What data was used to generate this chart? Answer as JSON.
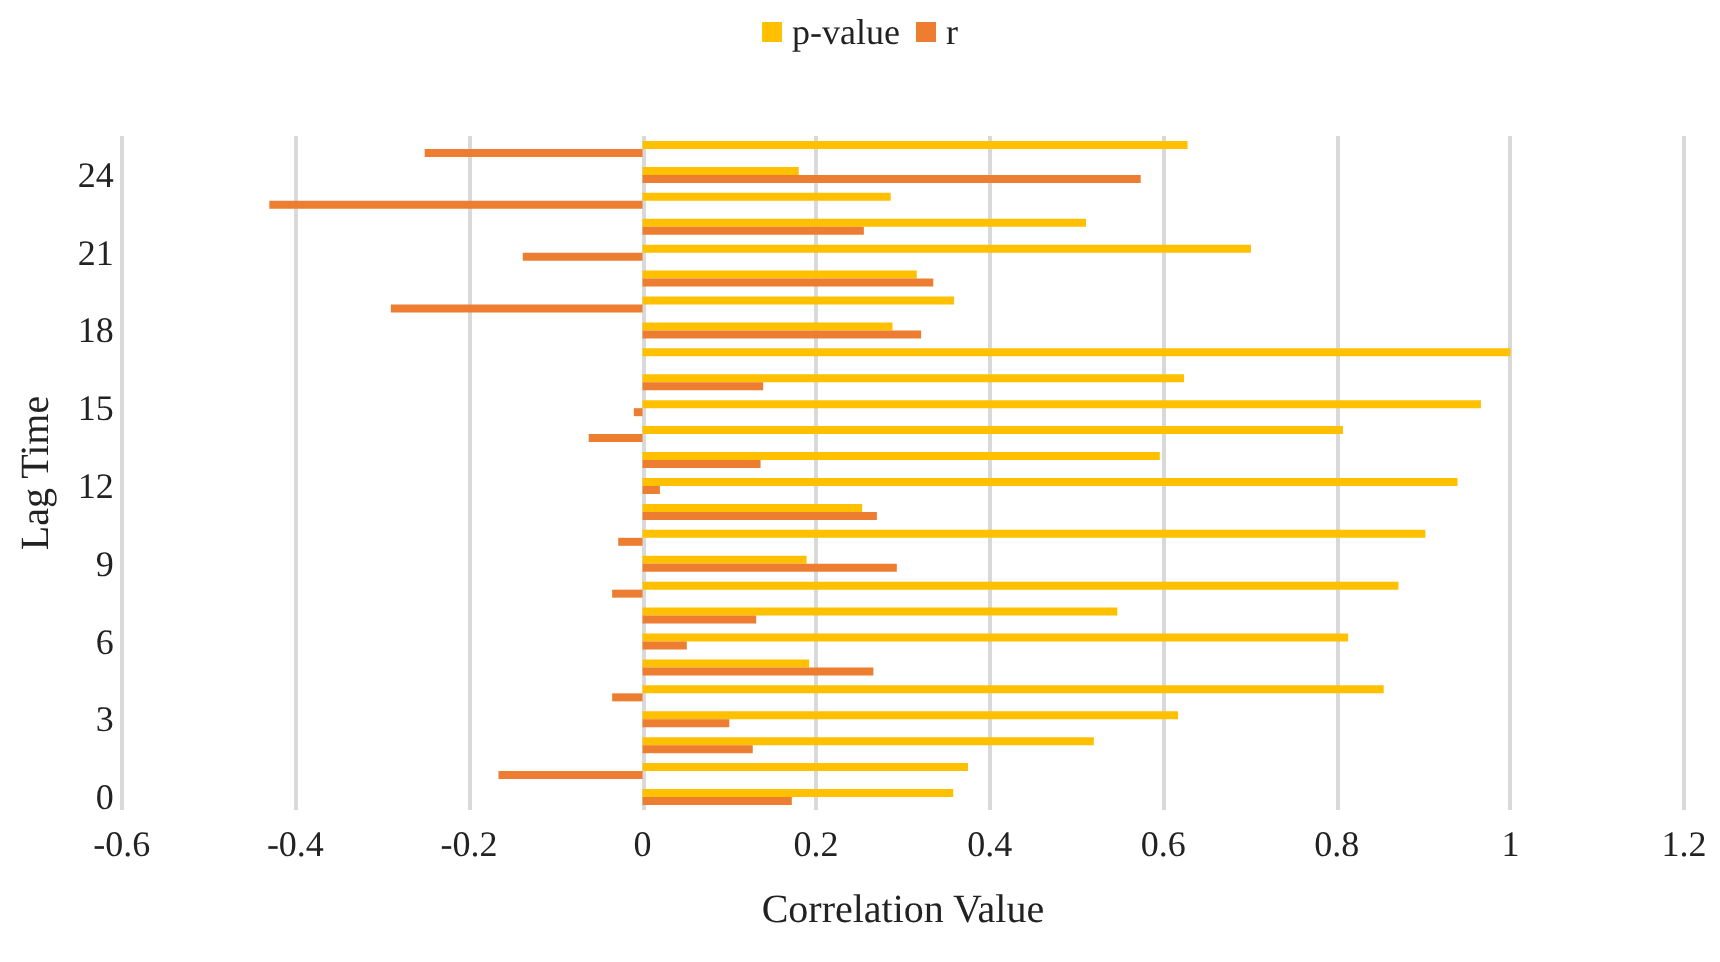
{
  "chart_data": {
    "type": "bar",
    "orientation": "horizontal",
    "xlabel": "Correlation Value",
    "ylabel": "Lag Time",
    "categories": [
      null,
      "24",
      null,
      null,
      "21",
      null,
      null,
      "18",
      null,
      null,
      "15",
      null,
      null,
      "12",
      null,
      null,
      "9",
      null,
      null,
      "6",
      null,
      null,
      "3",
      null,
      null,
      "0"
    ],
    "series": [
      {
        "name": "p-value",
        "color": "#ffc000",
        "values": [
          0.628,
          0.18,
          0.286,
          0.511,
          0.701,
          0.316,
          0.359,
          0.288,
          1.0,
          0.624,
          0.966,
          0.807,
          0.596,
          0.939,
          0.253,
          0.902,
          0.189,
          0.871,
          0.547,
          0.813,
          0.192,
          0.854,
          0.617,
          0.52,
          0.375,
          0.358
        ]
      },
      {
        "name": "r",
        "color": "#ed7d31",
        "values": [
          -0.251,
          0.574,
          -0.43,
          0.255,
          -0.138,
          0.335,
          -0.29,
          0.321,
          0,
          0.139,
          -0.01,
          -0.062,
          0.136,
          0.02,
          0.27,
          -0.028,
          0.293,
          -0.035,
          0.131,
          0.051,
          0.266,
          -0.035,
          0.1,
          0.127,
          -0.166,
          0.172
        ]
      }
    ],
    "xlim": [
      -0.6,
      1.2
    ],
    "xticks": [
      -0.6,
      -0.4,
      -0.2,
      0,
      0.2,
      0.4,
      0.6,
      0.8,
      1,
      1.2
    ],
    "grid": "x",
    "legend": "top"
  }
}
